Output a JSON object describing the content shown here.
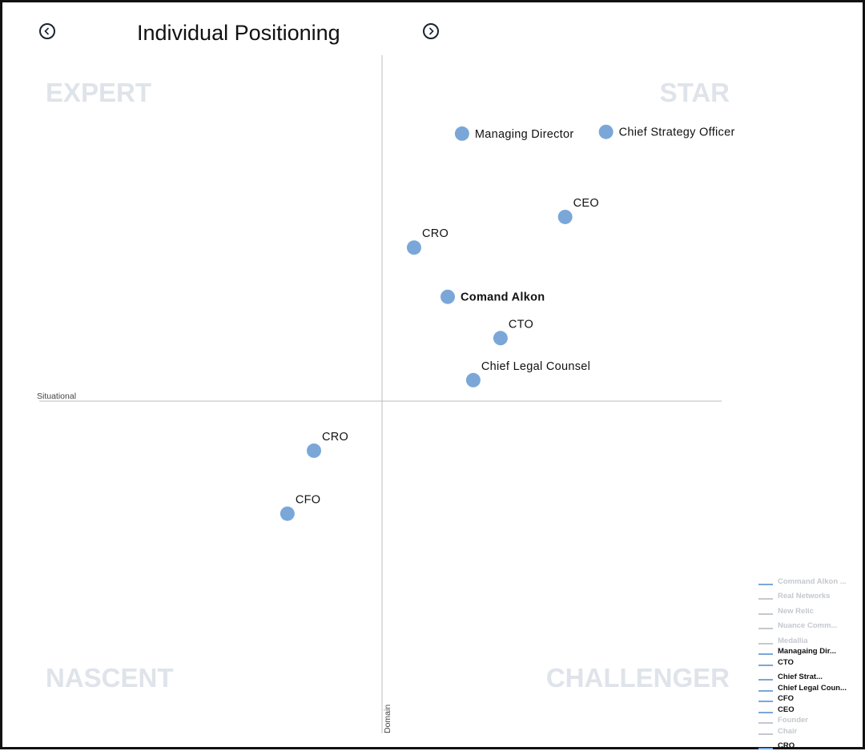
{
  "header": {
    "title": "Individual Positioning",
    "prev_icon": "chevron-left-icon",
    "next_icon": "chevron-right-icon"
  },
  "chart_data": {
    "type": "scatter",
    "title": "Individual Positioning",
    "xlabel": "Situational",
    "ylabel": "Domain",
    "xlim": [
      -100,
      100
    ],
    "ylim": [
      -100,
      100
    ],
    "quadrants": {
      "top_left": "EXPERT",
      "top_right": "STAR",
      "bottom_left": "NASCENT",
      "bottom_right": "CHALLENGER"
    },
    "point_color": "#7aa7d8",
    "points": [
      {
        "label": "Managing Director",
        "x": 23.5,
        "y": 77.7,
        "label_pos": "right",
        "bold": false
      },
      {
        "label": "Chief Strategy Officer",
        "x": 65.8,
        "y": 78.2,
        "label_pos": "right",
        "bold": false
      },
      {
        "label": "CEO",
        "x": 53.8,
        "y": 53.5,
        "label_pos": "above",
        "bold": false
      },
      {
        "label": "CRO",
        "x": 9.4,
        "y": 44.6,
        "label_pos": "above",
        "bold": false
      },
      {
        "label": "Comand Alkon",
        "x": 19.3,
        "y": 30.3,
        "label_pos": "right",
        "bold": true
      },
      {
        "label": "CTO",
        "x": 34.8,
        "y": 18.3,
        "label_pos": "above",
        "bold": false
      },
      {
        "label": "Chief Legal Counsel",
        "x": 26.8,
        "y": 6.1,
        "label_pos": "above",
        "bold": false
      },
      {
        "label": "CRO",
        "x": -20.0,
        "y": -14.4,
        "label_pos": "above",
        "bold": false
      },
      {
        "label": "CFO",
        "x": -27.8,
        "y": -32.7,
        "label_pos": "above",
        "bold": false
      }
    ]
  },
  "legend": {
    "items": [
      {
        "label": "Command Alkon ...",
        "active": false,
        "line_color": "#7aa7d8",
        "text_color": "#c4c8ce"
      },
      {
        "label": "Real Networks",
        "active": false,
        "line_color": "#c4c8ce",
        "text_color": "#c4c8ce"
      },
      {
        "label": "New Relic",
        "active": false,
        "line_color": "#c4c8ce",
        "text_color": "#c4c8ce"
      },
      {
        "label": "Nuance Comm...",
        "active": false,
        "line_color": "#c4c8ce",
        "text_color": "#c4c8ce"
      },
      {
        "label": "Medallia",
        "active": false,
        "line_color": "#c4c8ce",
        "text_color": "#c4c8ce"
      },
      {
        "label": "Managaing Dir...",
        "active": true,
        "line_color": "#7aa7d8",
        "text_color": "#111111"
      },
      {
        "label": "CTO",
        "active": true,
        "line_color": "#7aa7d8",
        "text_color": "#111111"
      },
      {
        "label": "Chief Strat...",
        "active": true,
        "line_color": "#7aa7d8",
        "text_color": "#111111"
      },
      {
        "label": "Chief Legal Coun...",
        "active": true,
        "line_color": "#7aa7d8",
        "text_color": "#111111"
      },
      {
        "label": "CFO",
        "active": true,
        "line_color": "#7aa7d8",
        "text_color": "#111111"
      },
      {
        "label": "CEO",
        "active": true,
        "line_color": "#7aa7d8",
        "text_color": "#111111"
      },
      {
        "label": "Founder",
        "active": false,
        "line_color": "#c4c8ce",
        "text_color": "#c4c8ce"
      },
      {
        "label": "Chair",
        "active": false,
        "line_color": "#c4c8ce",
        "text_color": "#c4c8ce"
      },
      {
        "label": "CRO",
        "active": true,
        "line_color": "#7aa7d8",
        "text_color": "#111111"
      }
    ]
  }
}
